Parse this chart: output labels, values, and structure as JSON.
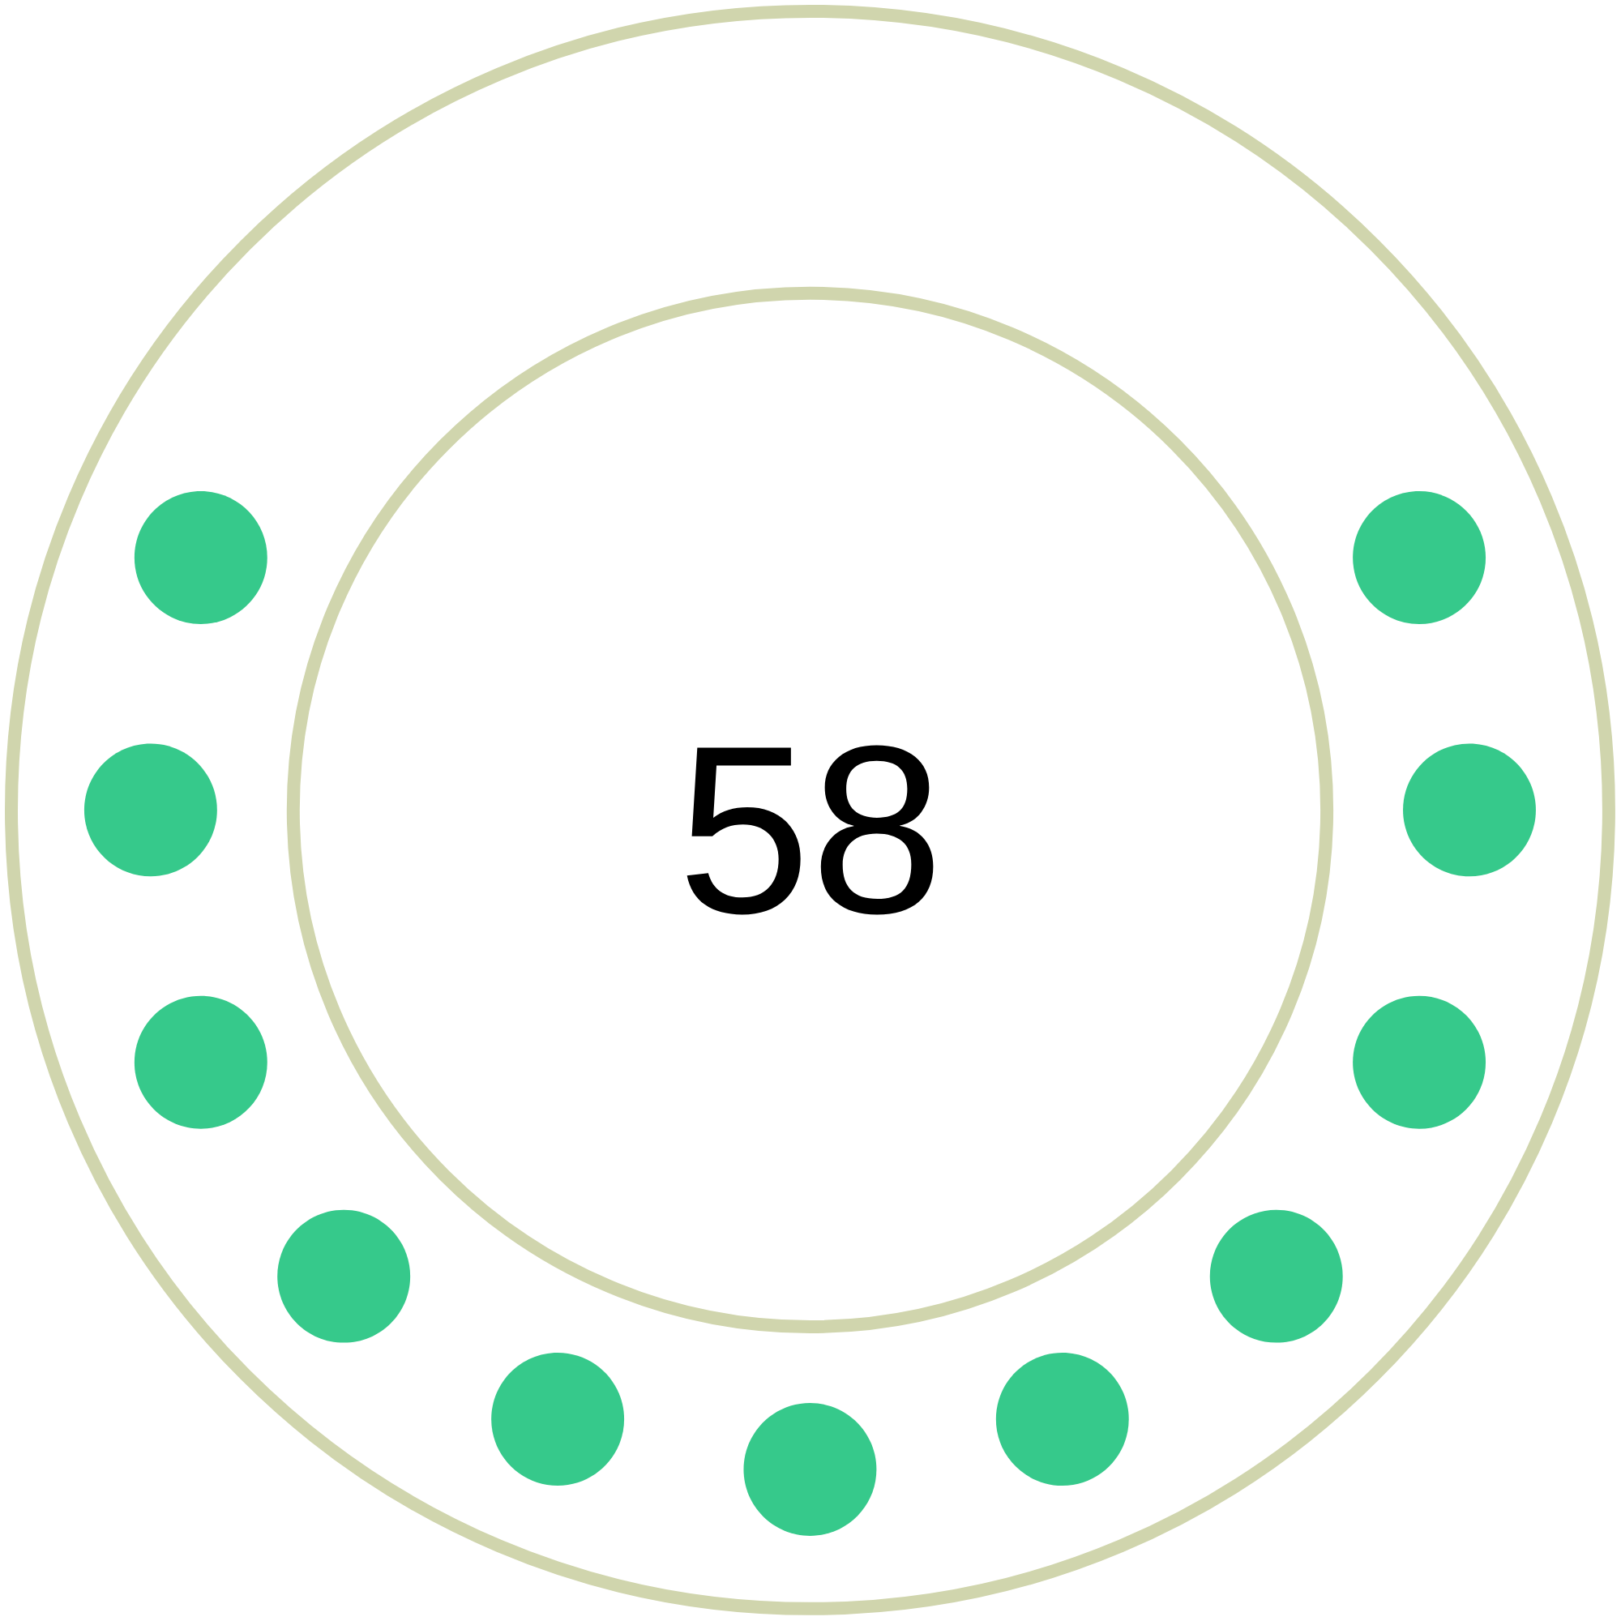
{
  "chart_data": {
    "type": "other",
    "values": [
      58
    ],
    "data_labels": true
  }
}
